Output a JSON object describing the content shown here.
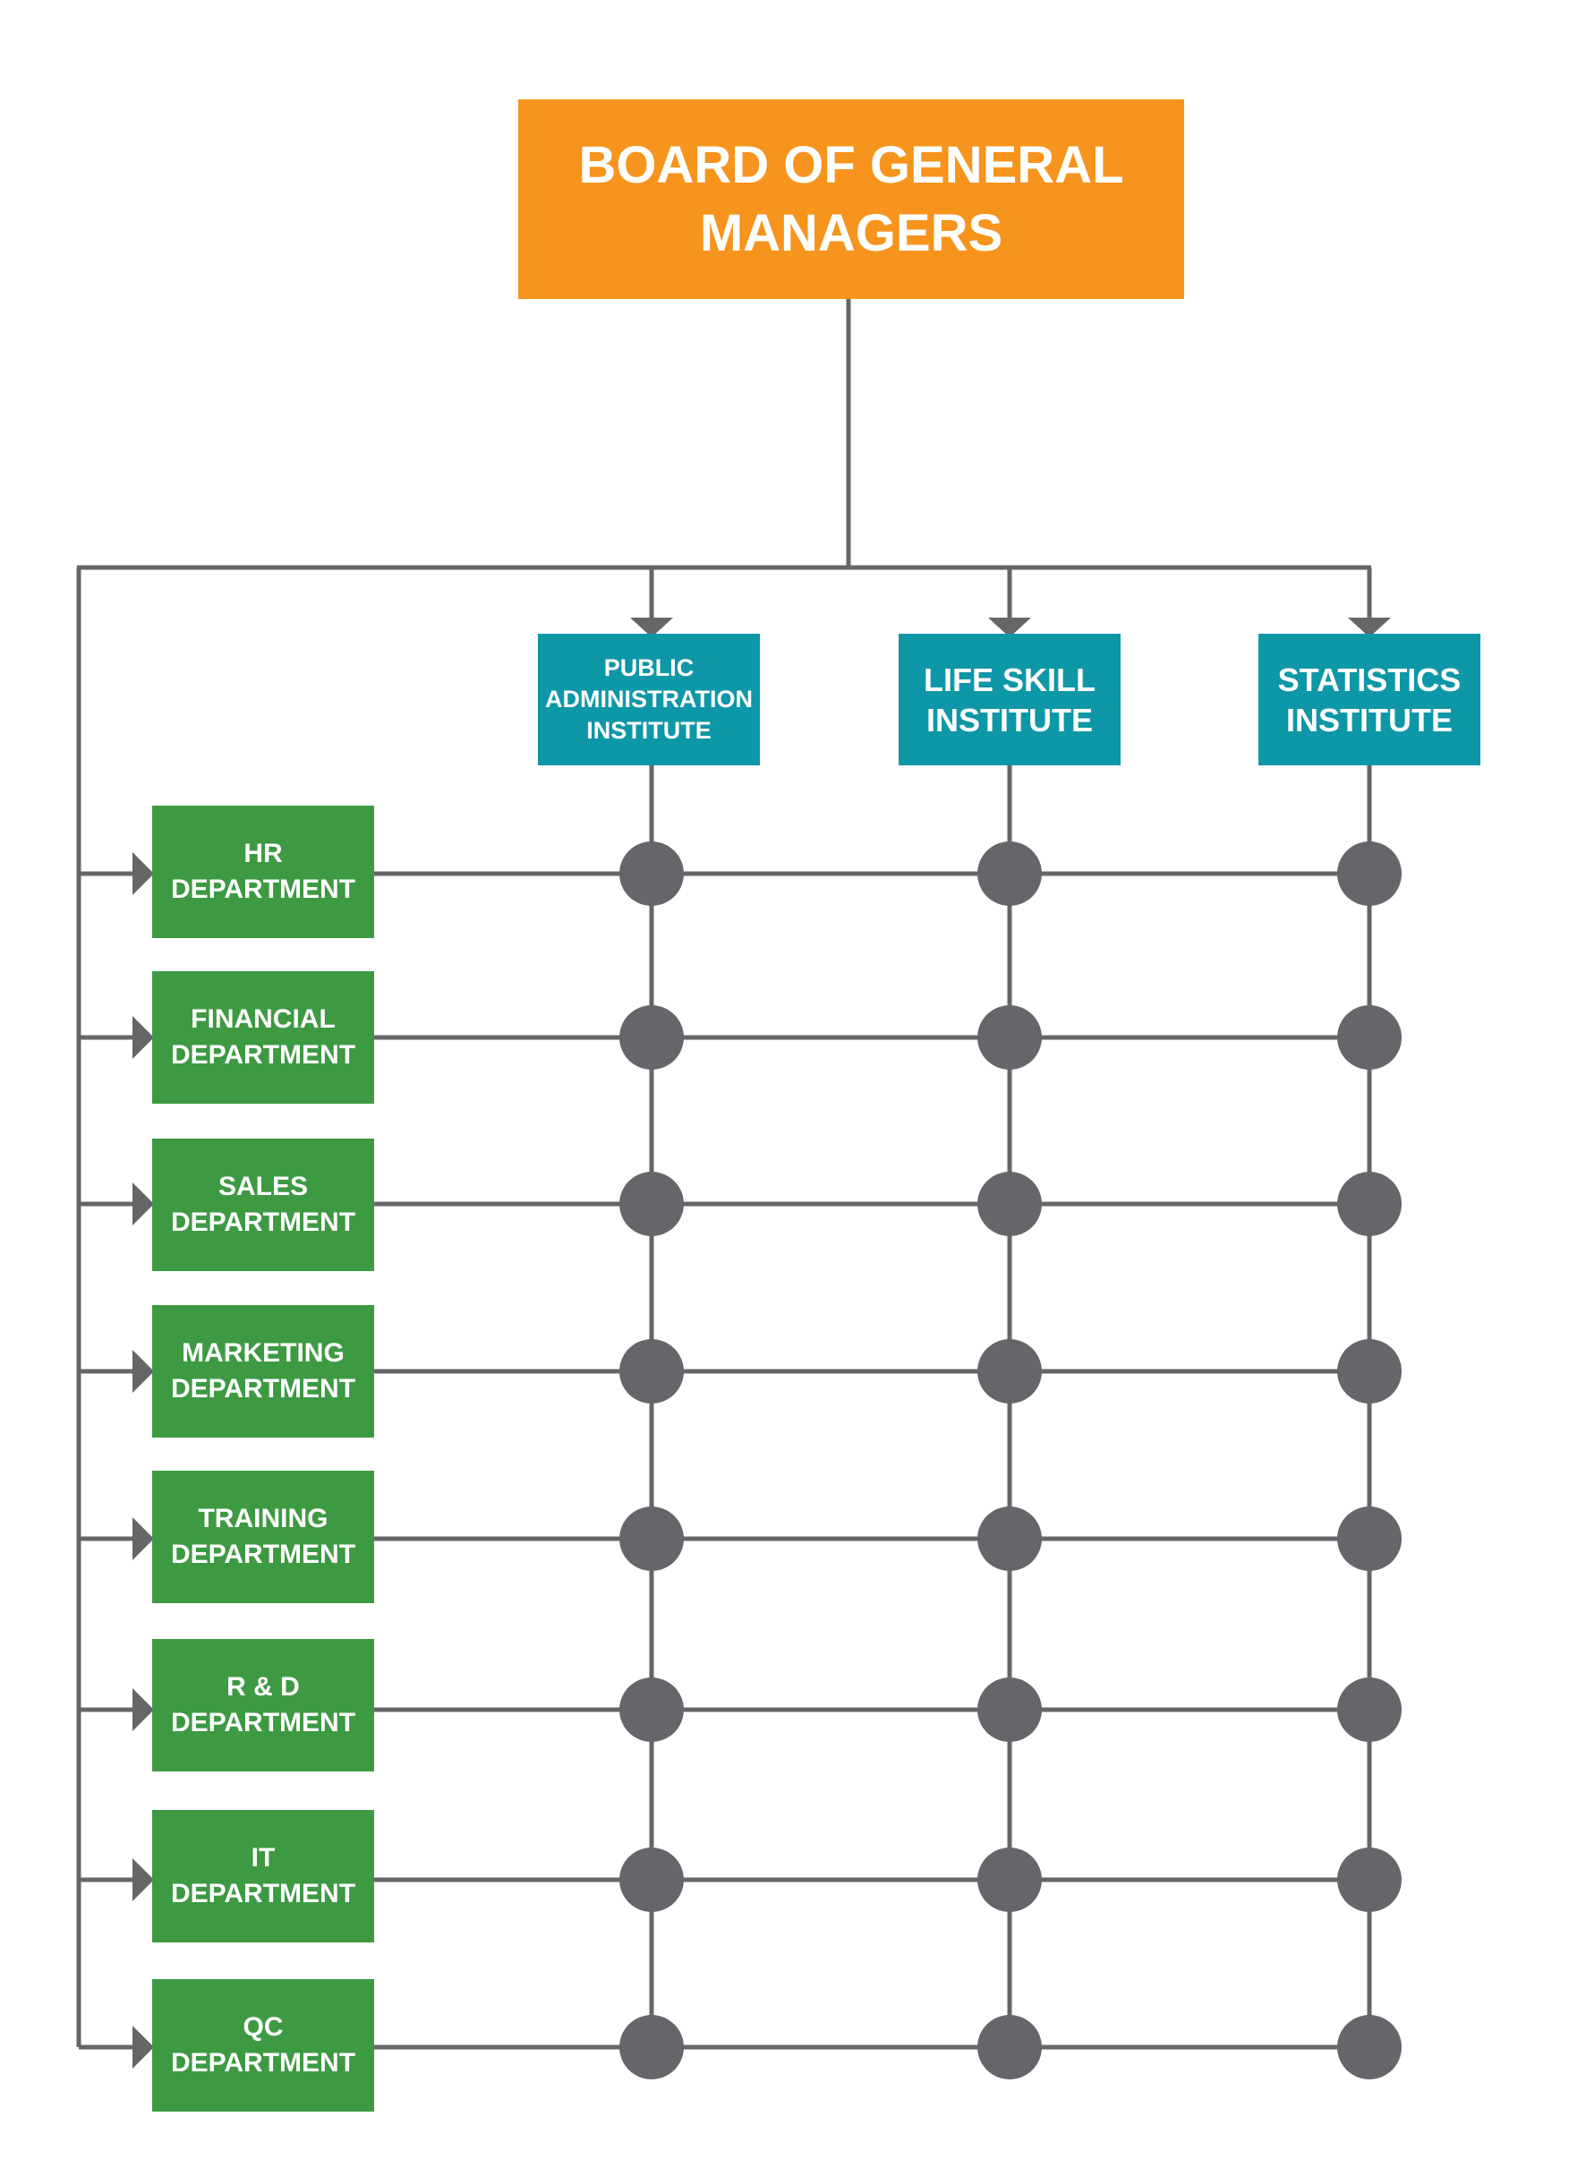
{
  "board": {
    "label": "BOARD OF GENERAL\nMANAGERS"
  },
  "institutes": [
    {
      "label": "PUBLIC\nADMINISTRATION\nINSTITUTE"
    },
    {
      "label": "LIFE SKILL\nINSTITUTE"
    },
    {
      "label": "STATISTICS\nINSTITUTE"
    }
  ],
  "departments": [
    {
      "label": "HR\nDEPARTMENT"
    },
    {
      "label": "FINANCIAL\nDEPARTMENT"
    },
    {
      "label": "SALES\nDEPARTMENT"
    },
    {
      "label": "MARKETING\nDEPARTMENT"
    },
    {
      "label": "TRAINING\nDEPARTMENT"
    },
    {
      "label": "R & D\nDEPARTMENT"
    },
    {
      "label": "IT\nDEPARTMENT"
    },
    {
      "label": "QC\nDEPARTMENT"
    }
  ],
  "colors": {
    "board": "#f7941d",
    "institute": "#0e97a7",
    "department": "#3d9a43",
    "connector": "#666669",
    "node": "#66666a"
  }
}
